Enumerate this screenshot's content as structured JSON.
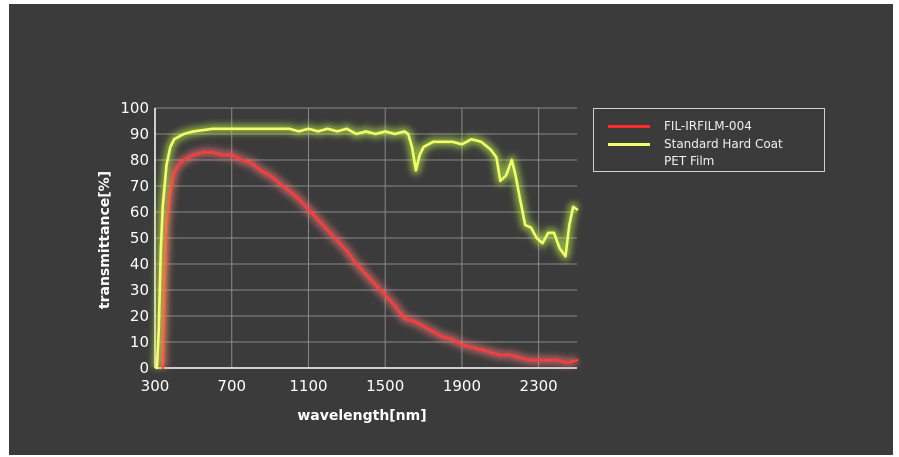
{
  "chart_data": {
    "type": "line",
    "title": "",
    "xlabel": "wavelength[nm]",
    "ylabel": "transmittance[%]",
    "xlim": [
      300,
      2500
    ],
    "ylim": [
      0,
      100
    ],
    "xticks": [
      "300",
      "700",
      "1100",
      "1500",
      "1900",
      "2300"
    ],
    "xtick_values": [
      300,
      700,
      1100,
      1500,
      1900,
      2300
    ],
    "yticks": [
      "0",
      "10",
      "20",
      "30",
      "40",
      "50",
      "60",
      "70",
      "80",
      "90",
      "100"
    ],
    "ytick_values": [
      0,
      10,
      20,
      30,
      40,
      50,
      60,
      70,
      80,
      90,
      100
    ],
    "grid": true,
    "legend_position": "right",
    "background_color": "#3b3b3b",
    "grid_color": "#8a8a8a",
    "series": [
      {
        "name": "FIL-IRFILM-004",
        "color": "#ff3b3b",
        "glow": "#ff7a7a",
        "x": [
          340,
          350,
          360,
          380,
          400,
          420,
          450,
          500,
          550,
          600,
          650,
          700,
          750,
          800,
          850,
          900,
          950,
          1000,
          1050,
          1100,
          1150,
          1200,
          1250,
          1300,
          1350,
          1400,
          1450,
          1500,
          1550,
          1600,
          1650,
          1700,
          1750,
          1800,
          1850,
          1900,
          1950,
          2000,
          2050,
          2100,
          2150,
          2200,
          2250,
          2300,
          2350,
          2400,
          2450,
          2500
        ],
        "y": [
          0,
          35,
          55,
          68,
          75,
          78,
          80,
          82,
          83,
          83,
          82,
          82,
          80,
          79,
          76,
          74,
          71,
          68,
          65,
          61,
          57,
          53,
          49,
          45,
          40,
          36,
          32,
          28,
          24,
          19,
          18,
          16,
          14,
          12,
          11,
          9,
          8,
          7,
          6,
          5,
          5,
          4,
          3,
          3,
          3,
          3,
          2,
          3
        ]
      },
      {
        "name": "Standard Hard Coat\nPET Film",
        "color": "#f2ff6a",
        "glow": "#c8ff4a",
        "x": [
          310,
          320,
          330,
          340,
          360,
          380,
          400,
          450,
          500,
          600,
          700,
          800,
          900,
          1000,
          1050,
          1100,
          1150,
          1200,
          1250,
          1300,
          1350,
          1400,
          1450,
          1500,
          1550,
          1600,
          1620,
          1640,
          1660,
          1680,
          1700,
          1750,
          1800,
          1850,
          1900,
          1950,
          2000,
          2050,
          2080,
          2100,
          2130,
          2160,
          2180,
          2200,
          2230,
          2260,
          2290,
          2320,
          2350,
          2380,
          2410,
          2440,
          2460,
          2480,
          2500
        ],
        "y": [
          0,
          15,
          45,
          62,
          78,
          85,
          88,
          90,
          91,
          92,
          92,
          92,
          92,
          92,
          91,
          92,
          91,
          92,
          91,
          92,
          90,
          91,
          90,
          91,
          90,
          91,
          90,
          85,
          76,
          82,
          85,
          87,
          87,
          87,
          86,
          88,
          87,
          84,
          81,
          72,
          74,
          80,
          74,
          66,
          55,
          54,
          50,
          48,
          52,
          52,
          46,
          43,
          55,
          62,
          61
        ]
      }
    ]
  }
}
